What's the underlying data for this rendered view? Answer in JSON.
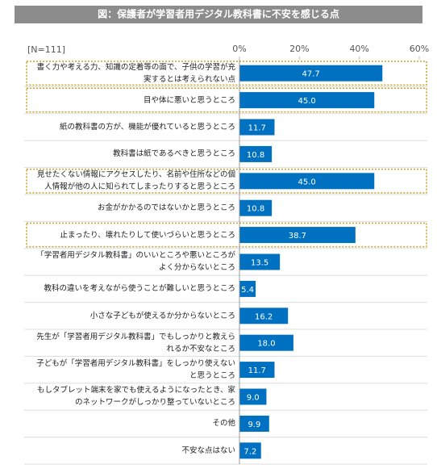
{
  "chart_data": {
    "type": "bar",
    "orientation": "horizontal",
    "title": "図：保護者が学習者用デジタル教科書に不安を感じる点",
    "note": "[N=111]",
    "categories": [
      "書く力や考える力、知識の定着等の面で、子供の学習が充実するとは考えられない点",
      "目や体に悪いと思うところ",
      "紙の教科書の方が、機能が優れていると思うところ",
      "教科書は紙であるべきと思うところ",
      "見せたくない情報にアクセスしたり、名前や住所などの個人情報が他の人に知られてしまったりすると思うところ",
      "お金がかかるのではないかと思うところ",
      "止まったり、壊れたりして使いづらいと思うところ",
      "「学習者用デジタル教科書」のいいところや悪いところがよく分からないところ",
      "教科の違いを考えながら使うことが難しいと思うところ",
      "小さな子どもが使えるか分からないところ",
      "先生が「学習者用デジタル教科書」でもしっかりと教えられるか不安なところ",
      "子どもが「学習者用デジタル教科書」をしっかり使えないと思うところ",
      "もしタブレット端末を家でも使えるようになったとき、家のネットワークがしっかり整っていないところ",
      "その他",
      "不安な点はない"
    ],
    "values": [
      47.7,
      45.0,
      11.7,
      10.8,
      45.0,
      10.8,
      38.7,
      13.5,
      5.4,
      16.2,
      18.0,
      11.7,
      9.0,
      9.9,
      7.2
    ],
    "value_labels": [
      "47.7",
      "45.0",
      "11.7",
      "10.8",
      "45.0",
      "10.8",
      "38.7",
      "13.5",
      "5.4",
      "16.2",
      "18.0",
      "11.7",
      "9.0",
      "9.9",
      "7.2"
    ],
    "highlight": [
      true,
      true,
      false,
      false,
      true,
      false,
      true,
      false,
      false,
      false,
      false,
      false,
      false,
      false,
      false
    ],
    "color": "#0070c0",
    "xlim": [
      0,
      60
    ],
    "xticks": [
      {
        "value": 0,
        "label": "0%"
      },
      {
        "value": 20,
        "label": "20%"
      },
      {
        "value": 40,
        "label": "40%"
      },
      {
        "value": 60,
        "label": "60%"
      }
    ]
  }
}
